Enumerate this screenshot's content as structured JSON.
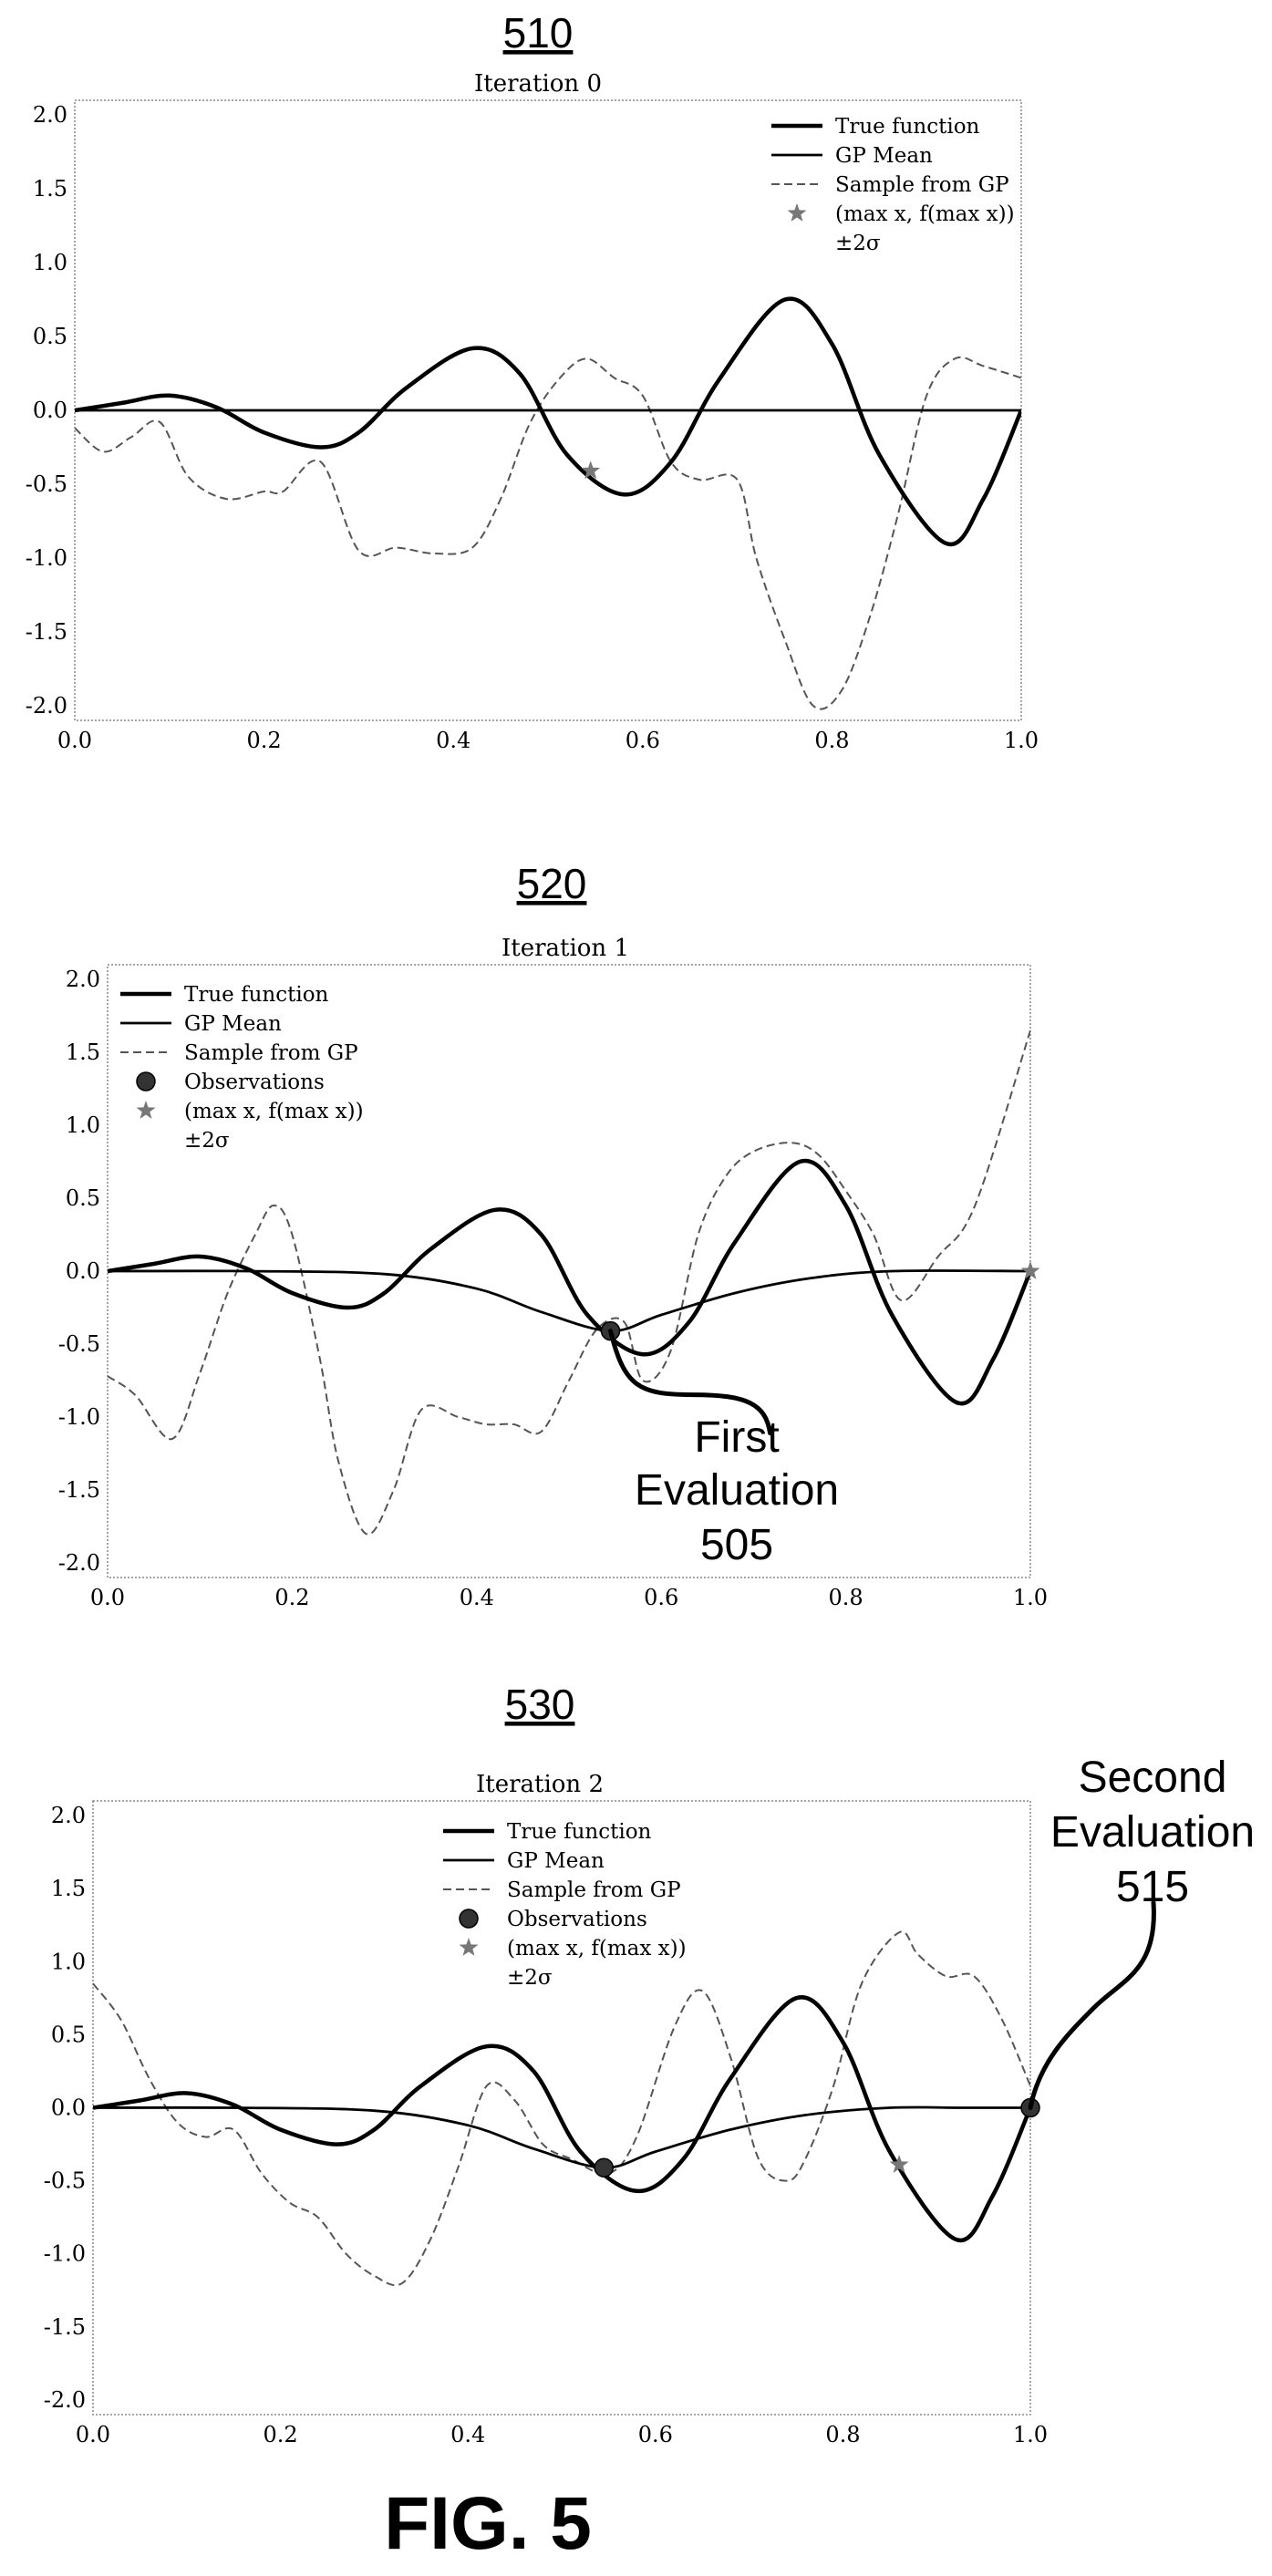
{
  "figure_label": "FIG. 5",
  "chart_data": [
    {
      "type": "line",
      "ref": "510",
      "title": "Iteration 0",
      "xlim": [
        0,
        1
      ],
      "ylim": [
        -2.1,
        2.1
      ],
      "xticks": [
        "0.0",
        "0.2",
        "0.4",
        "0.6",
        "0.8",
        "1.0"
      ],
      "yticks": [
        "2.0",
        "1.5",
        "1.0",
        "0.5",
        "0.0",
        "-0.5",
        "-1.0",
        "-1.5",
        "-2.0"
      ],
      "legend_position": "top-right",
      "legend": [
        "True function",
        "GP Mean",
        "Sample from GP",
        "(max x, f(max x))",
        "±2σ"
      ],
      "true_function": {
        "name": "True function",
        "x": [
          0,
          0.05,
          0.1,
          0.15,
          0.2,
          0.26,
          0.3,
          0.35,
          0.42,
          0.47,
          0.52,
          0.58,
          0.63,
          0.68,
          0.75,
          0.8,
          0.85,
          0.92,
          0.96,
          1.0
        ],
        "y": [
          0,
          0.05,
          0.1,
          0.02,
          -0.15,
          -0.25,
          -0.15,
          0.15,
          0.42,
          0.25,
          -0.3,
          -0.57,
          -0.35,
          0.2,
          0.75,
          0.45,
          -0.3,
          -0.9,
          -0.6,
          0
        ]
      },
      "gp_mean": {
        "name": "GP Mean",
        "x": [
          0,
          1
        ],
        "y": [
          0,
          0
        ]
      },
      "gp_sample": {
        "name": "Sample from GP",
        "x": [
          0,
          0.03,
          0.06,
          0.09,
          0.12,
          0.16,
          0.2,
          0.22,
          0.26,
          0.3,
          0.34,
          0.38,
          0.42,
          0.45,
          0.48,
          0.51,
          0.54,
          0.57,
          0.6,
          0.63,
          0.66,
          0.7,
          0.72,
          0.75,
          0.78,
          0.81,
          0.84,
          0.87,
          0.9,
          0.93,
          0.96,
          1.0
        ],
        "y": [
          -0.12,
          -0.28,
          -0.18,
          -0.08,
          -0.45,
          -0.6,
          -0.55,
          -0.55,
          -0.35,
          -0.95,
          -0.93,
          -0.97,
          -0.93,
          -0.6,
          -0.1,
          0.2,
          0.35,
          0.22,
          0.1,
          -0.35,
          -0.47,
          -0.47,
          -1.0,
          -1.55,
          -2.0,
          -1.9,
          -1.4,
          -0.7,
          0.1,
          0.35,
          0.3,
          0.22
        ]
      },
      "max_point": {
        "x": 0.545,
        "y": -0.41
      },
      "observations": []
    },
    {
      "type": "line",
      "ref": "520",
      "title": "Iteration 1",
      "xlim": [
        0,
        1
      ],
      "ylim": [
        -2.1,
        2.1
      ],
      "xticks": [
        "0.0",
        "0.2",
        "0.4",
        "0.6",
        "0.8",
        "1.0"
      ],
      "yticks": [
        "2.0",
        "1.5",
        "1.0",
        "0.5",
        "0.0",
        "-0.5",
        "-1.0",
        "-1.5",
        "-2.0"
      ],
      "legend_position": "top-left",
      "legend": [
        "True function",
        "GP Mean",
        "Sample from GP",
        "Observations",
        "(max x, f(max x))",
        "±2σ"
      ],
      "true_function": {
        "name": "True function",
        "x": [
          0,
          0.05,
          0.1,
          0.15,
          0.2,
          0.26,
          0.3,
          0.35,
          0.42,
          0.47,
          0.52,
          0.58,
          0.63,
          0.68,
          0.75,
          0.8,
          0.85,
          0.92,
          0.96,
          1.0
        ],
        "y": [
          0,
          0.05,
          0.1,
          0.02,
          -0.15,
          -0.25,
          -0.15,
          0.15,
          0.42,
          0.25,
          -0.3,
          -0.57,
          -0.35,
          0.2,
          0.75,
          0.45,
          -0.3,
          -0.9,
          -0.6,
          0
        ]
      },
      "gp_mean": {
        "name": "GP Mean",
        "x": [
          0,
          0.15,
          0.3,
          0.4,
          0.47,
          0.545,
          0.6,
          0.68,
          0.76,
          0.85,
          1.0
        ],
        "y": [
          0,
          0,
          -0.02,
          -0.12,
          -0.28,
          -0.41,
          -0.3,
          -0.15,
          -0.05,
          0,
          0
        ]
      },
      "gp_sample": {
        "name": "Sample from GP",
        "x": [
          0,
          0.03,
          0.07,
          0.1,
          0.13,
          0.16,
          0.18,
          0.2,
          0.23,
          0.25,
          0.28,
          0.31,
          0.34,
          0.38,
          0.41,
          0.44,
          0.47,
          0.5,
          0.53,
          0.56,
          0.58,
          0.61,
          0.64,
          0.67,
          0.7,
          0.74,
          0.77,
          0.8,
          0.83,
          0.86,
          0.9,
          0.94,
          1.0
        ],
        "y": [
          -0.72,
          -0.85,
          -1.15,
          -0.7,
          -0.15,
          0.25,
          0.45,
          0.25,
          -0.6,
          -1.3,
          -1.8,
          -1.5,
          -0.95,
          -1.0,
          -1.05,
          -1.05,
          -1.1,
          -0.75,
          -0.4,
          -0.35,
          -0.75,
          -0.55,
          0.25,
          0.65,
          0.82,
          0.88,
          0.8,
          0.55,
          0.25,
          -0.2,
          0.1,
          0.45,
          1.65
        ]
      },
      "max_point": {
        "x": 1.0,
        "y": 0.0
      },
      "observations": [
        {
          "x": 0.545,
          "y": -0.41
        }
      ]
    },
    {
      "type": "line",
      "ref": "530",
      "title": "Iteration 2",
      "xlim": [
        0,
        1
      ],
      "ylim": [
        -2.1,
        2.1
      ],
      "xticks": [
        "0.0",
        "0.2",
        "0.4",
        "0.6",
        "0.8",
        "1.0"
      ],
      "yticks": [
        "2.0",
        "1.5",
        "1.0",
        "0.5",
        "0.0",
        "-0.5",
        "-1.0",
        "-1.5",
        "-2.0"
      ],
      "legend_position": "top-center",
      "legend": [
        "True function",
        "GP Mean",
        "Sample from GP",
        "Observations",
        "(max x, f(max x))",
        "±2σ"
      ],
      "true_function": {
        "name": "True function",
        "x": [
          0,
          0.05,
          0.1,
          0.15,
          0.2,
          0.26,
          0.3,
          0.35,
          0.42,
          0.47,
          0.52,
          0.58,
          0.63,
          0.68,
          0.75,
          0.8,
          0.85,
          0.92,
          0.96,
          1.0
        ],
        "y": [
          0,
          0.05,
          0.1,
          0.02,
          -0.15,
          -0.25,
          -0.15,
          0.15,
          0.42,
          0.25,
          -0.3,
          -0.57,
          -0.35,
          0.2,
          0.75,
          0.45,
          -0.3,
          -0.9,
          -0.6,
          0
        ]
      },
      "gp_mean": {
        "name": "GP Mean",
        "x": [
          0,
          0.15,
          0.3,
          0.4,
          0.47,
          0.545,
          0.6,
          0.68,
          0.76,
          0.85,
          0.93,
          1.0
        ],
        "y": [
          0,
          0,
          -0.02,
          -0.12,
          -0.28,
          -0.41,
          -0.3,
          -0.15,
          -0.05,
          0,
          0,
          0
        ]
      },
      "gp_sample": {
        "name": "Sample from GP",
        "x": [
          0,
          0.03,
          0.06,
          0.09,
          0.12,
          0.15,
          0.18,
          0.21,
          0.24,
          0.27,
          0.3,
          0.33,
          0.36,
          0.39,
          0.42,
          0.45,
          0.48,
          0.51,
          0.55,
          0.58,
          0.62,
          0.65,
          0.68,
          0.71,
          0.74,
          0.76,
          0.79,
          0.82,
          0.86,
          0.88,
          0.91,
          0.94,
          0.97,
          1.0
        ],
        "y": [
          0.85,
          0.6,
          0.2,
          -0.1,
          -0.2,
          -0.15,
          -0.45,
          -0.65,
          -0.75,
          -1.0,
          -1.15,
          -1.2,
          -0.9,
          -0.4,
          0.15,
          0.05,
          -0.25,
          -0.35,
          -0.45,
          -0.2,
          0.55,
          0.8,
          0.35,
          -0.35,
          -0.5,
          -0.35,
          0.15,
          0.85,
          1.2,
          1.05,
          0.9,
          0.9,
          0.6,
          0.15
        ]
      },
      "max_point": {
        "x": 0.86,
        "y": -0.39
      },
      "observations": [
        {
          "x": 0.545,
          "y": -0.41
        },
        {
          "x": 1.0,
          "y": 0.0
        }
      ]
    }
  ],
  "annotations": [
    {
      "id": "first-evaluation",
      "chart": 1,
      "lines": [
        "First",
        "Evaluation",
        "505"
      ]
    },
    {
      "id": "second-evaluation",
      "chart": 2,
      "lines": [
        "Second",
        "Evaluation",
        "515"
      ]
    }
  ]
}
